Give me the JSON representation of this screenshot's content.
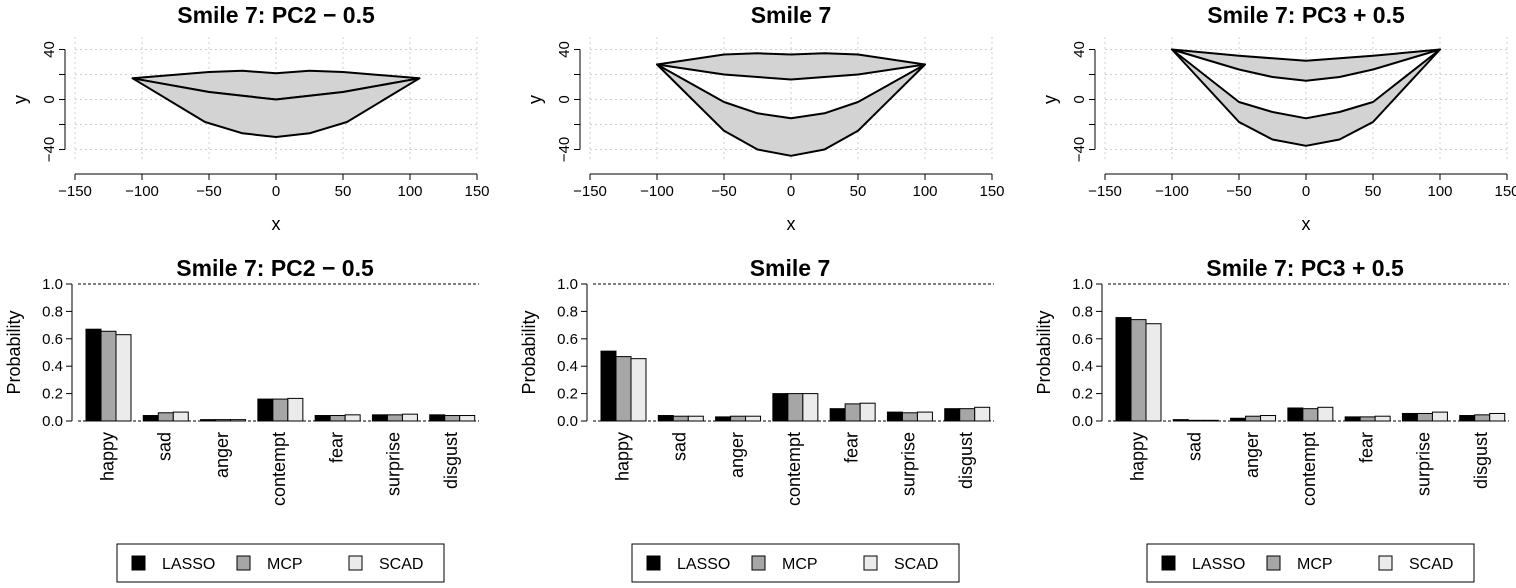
{
  "legend": {
    "entries": [
      "LASSO",
      "MCP",
      "SCAD"
    ],
    "colors": [
      "#000000",
      "#a6a6a6",
      "#ebebeb"
    ]
  },
  "chart_data": [
    {
      "type": "area",
      "title": "Smile 7:  PC2 − 0.5",
      "xlabel": "x",
      "ylabel": "y",
      "xlim": [
        -150,
        150
      ],
      "ylim": [
        -50,
        50
      ],
      "xticks": [
        -150,
        -100,
        -50,
        0,
        50,
        100,
        150
      ],
      "yticks": [
        -40,
        0,
        40
      ],
      "grid": true,
      "fill_color": "#d3d3d3",
      "upper_top": [
        [
          -107,
          17
        ],
        [
          -50,
          22
        ],
        [
          -25,
          23
        ],
        [
          0,
          21
        ],
        [
          25,
          23
        ],
        [
          50,
          22
        ],
        [
          107,
          17
        ]
      ],
      "upper_bottom": [
        [
          -107,
          17
        ],
        [
          -50,
          6
        ],
        [
          -25,
          3
        ],
        [
          0,
          0
        ],
        [
          25,
          3
        ],
        [
          50,
          6
        ],
        [
          107,
          17
        ]
      ],
      "lower_bottom": [
        [
          -107,
          17
        ],
        [
          -53,
          -18
        ],
        [
          -25,
          -27
        ],
        [
          0,
          -30
        ],
        [
          25,
          -27
        ],
        [
          53,
          -18
        ],
        [
          107,
          17
        ]
      ]
    },
    {
      "type": "area",
      "title": "Smile 7",
      "xlabel": "x",
      "ylabel": "y",
      "xlim": [
        -150,
        150
      ],
      "ylim": [
        -50,
        50
      ],
      "xticks": [
        -150,
        -100,
        -50,
        0,
        50,
        100,
        150
      ],
      "yticks": [
        -40,
        0,
        40
      ],
      "grid": true,
      "fill_color": "#d3d3d3",
      "upper_top": [
        [
          -100,
          28
        ],
        [
          -50,
          36
        ],
        [
          -25,
          37
        ],
        [
          0,
          36
        ],
        [
          25,
          37
        ],
        [
          50,
          36
        ],
        [
          100,
          28
        ]
      ],
      "upper_bottom": [
        [
          -100,
          28
        ],
        [
          -50,
          20
        ],
        [
          -25,
          18
        ],
        [
          0,
          16
        ],
        [
          25,
          18
        ],
        [
          50,
          20
        ],
        [
          100,
          28
        ]
      ],
      "lower_top": [
        [
          -100,
          28
        ],
        [
          -50,
          -2
        ],
        [
          -25,
          -11
        ],
        [
          0,
          -15
        ],
        [
          25,
          -11
        ],
        [
          50,
          -2
        ],
        [
          100,
          28
        ]
      ],
      "lower_bottom": [
        [
          -100,
          28
        ],
        [
          -50,
          -25
        ],
        [
          -25,
          -40
        ],
        [
          0,
          -45
        ],
        [
          25,
          -40
        ],
        [
          50,
          -25
        ],
        [
          100,
          28
        ]
      ]
    },
    {
      "type": "area",
      "title": "Smile 7:  PC3 + 0.5",
      "xlabel": "x",
      "ylabel": "y",
      "xlim": [
        -150,
        150
      ],
      "ylim": [
        -50,
        50
      ],
      "xticks": [
        -150,
        -100,
        -50,
        0,
        50,
        100,
        150
      ],
      "yticks": [
        -40,
        0,
        40
      ],
      "grid": true,
      "fill_color": "#d3d3d3",
      "upper_top": [
        [
          -100,
          40
        ],
        [
          -50,
          35
        ],
        [
          -25,
          33
        ],
        [
          0,
          31
        ],
        [
          25,
          33
        ],
        [
          50,
          35
        ],
        [
          100,
          40
        ]
      ],
      "upper_bottom": [
        [
          -100,
          40
        ],
        [
          -50,
          24
        ],
        [
          -25,
          18
        ],
        [
          0,
          15
        ],
        [
          25,
          18
        ],
        [
          50,
          24
        ],
        [
          100,
          40
        ]
      ],
      "lower_top": [
        [
          -100,
          40
        ],
        [
          -50,
          -2
        ],
        [
          -25,
          -10
        ],
        [
          0,
          -15
        ],
        [
          25,
          -10
        ],
        [
          50,
          -2
        ],
        [
          100,
          40
        ]
      ],
      "lower_bottom": [
        [
          -100,
          40
        ],
        [
          -50,
          -18
        ],
        [
          -25,
          -32
        ],
        [
          0,
          -37
        ],
        [
          25,
          -32
        ],
        [
          50,
          -18
        ],
        [
          100,
          40
        ]
      ]
    },
    {
      "type": "bar",
      "title": "Smile 7:  PC2 − 0.5",
      "ylabel": "Probability",
      "xlabel": "",
      "ylim": [
        0,
        1
      ],
      "yticks": [
        "0.0",
        "0.2",
        "0.4",
        "0.6",
        "0.8",
        "1.0"
      ],
      "categories": [
        "happy",
        "sad",
        "anger",
        "contempt",
        "fear",
        "surprise",
        "disgust"
      ],
      "series": [
        {
          "name": "LASSO",
          "values": [
            0.67,
            0.04,
            0.01,
            0.16,
            0.04,
            0.045,
            0.045
          ]
        },
        {
          "name": "MCP",
          "values": [
            0.655,
            0.06,
            0.01,
            0.16,
            0.04,
            0.045,
            0.04
          ]
        },
        {
          "name": "SCAD",
          "values": [
            0.63,
            0.065,
            0.01,
            0.165,
            0.045,
            0.05,
            0.04
          ]
        }
      ]
    },
    {
      "type": "bar",
      "title": "Smile 7",
      "ylabel": "Probability",
      "xlabel": "",
      "ylim": [
        0,
        1
      ],
      "yticks": [
        "0.0",
        "0.2",
        "0.4",
        "0.6",
        "0.8",
        "1.0"
      ],
      "categories": [
        "happy",
        "sad",
        "anger",
        "contempt",
        "fear",
        "surprise",
        "disgust"
      ],
      "series": [
        {
          "name": "LASSO",
          "values": [
            0.51,
            0.04,
            0.03,
            0.2,
            0.09,
            0.065,
            0.09
          ]
        },
        {
          "name": "MCP",
          "values": [
            0.47,
            0.035,
            0.035,
            0.2,
            0.125,
            0.06,
            0.09
          ]
        },
        {
          "name": "SCAD",
          "values": [
            0.455,
            0.035,
            0.035,
            0.2,
            0.13,
            0.065,
            0.1
          ]
        }
      ]
    },
    {
      "type": "bar",
      "title": "Smile 7:  PC3 + 0.5",
      "ylabel": "Probability",
      "xlabel": "",
      "ylim": [
        0,
        1
      ],
      "yticks": [
        "0.0",
        "0.2",
        "0.4",
        "0.6",
        "0.8",
        "1.0"
      ],
      "categories": [
        "happy",
        "sad",
        "anger",
        "contempt",
        "fear",
        "surprise",
        "disgust"
      ],
      "series": [
        {
          "name": "LASSO",
          "values": [
            0.755,
            0.01,
            0.02,
            0.095,
            0.03,
            0.055,
            0.04
          ]
        },
        {
          "name": "MCP",
          "values": [
            0.74,
            0.005,
            0.035,
            0.09,
            0.03,
            0.055,
            0.045
          ]
        },
        {
          "name": "SCAD",
          "values": [
            0.71,
            0.005,
            0.04,
            0.1,
            0.035,
            0.065,
            0.055
          ]
        }
      ]
    }
  ]
}
